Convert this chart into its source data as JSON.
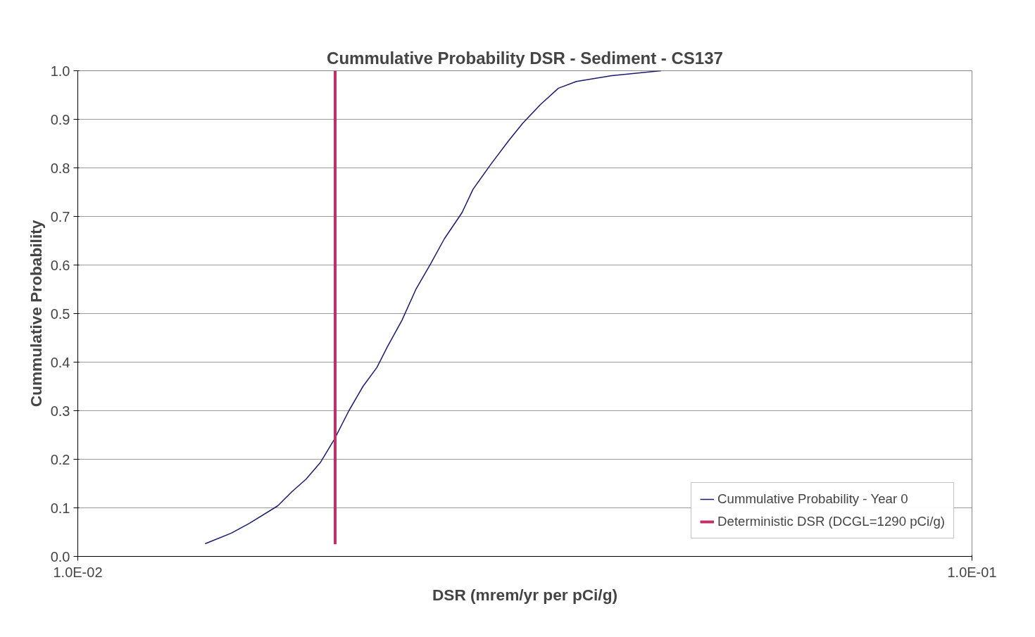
{
  "chart_data": {
    "type": "line",
    "title": "Cummulative Probability DSR - Sediment - CS137",
    "xlabel": "DSR (mrem/yr per pCi/g)",
    "ylabel": "Cummulative Probability",
    "log": "x",
    "xlim": [
      0.01,
      0.1
    ],
    "xticks": [
      {
        "value": 0.01,
        "label": "1.0E-02"
      },
      {
        "value": 0.1,
        "label": "1.0E-01"
      }
    ],
    "ylim": [
      0,
      1
    ],
    "yticks": [
      {
        "value": 0,
        "label": "0.0"
      },
      0.1,
      0.2,
      0.3,
      0.4,
      0.5,
      0.6,
      0.7,
      0.8,
      0.9,
      {
        "value": 1,
        "label": "1.0"
      }
    ],
    "grid": "y",
    "legend": "bottom right",
    "series": [
      {
        "name": "Cummulative Probability - Year 0",
        "color": "#1a1a6e",
        "x": [
          0.01388,
          0.01485,
          0.01555,
          0.01673,
          0.01735,
          0.018,
          0.01867,
          0.01936,
          0.0201,
          0.02084,
          0.0216,
          0.0222,
          0.02304,
          0.0239,
          0.0248,
          0.0257,
          0.0269,
          0.02767,
          0.02896,
          0.0303,
          0.03145,
          0.0329,
          0.03447,
          0.0361,
          0.03954,
          0.0449
        ],
        "values": [
          0.026,
          0.048,
          0.068,
          0.104,
          0.133,
          0.159,
          0.193,
          0.241,
          0.3,
          0.35,
          0.389,
          0.432,
          0.486,
          0.551,
          0.602,
          0.654,
          0.708,
          0.756,
          0.807,
          0.855,
          0.892,
          0.93,
          0.964,
          0.978,
          0.99,
          1.0
        ]
      },
      {
        "name": "Deterministic DSR (DCGL=1290 pCi/g)",
        "color": "#c0306a",
        "x": [
          0.0194,
          0.0194
        ],
        "values": [
          0.025,
          1.0
        ]
      }
    ]
  }
}
